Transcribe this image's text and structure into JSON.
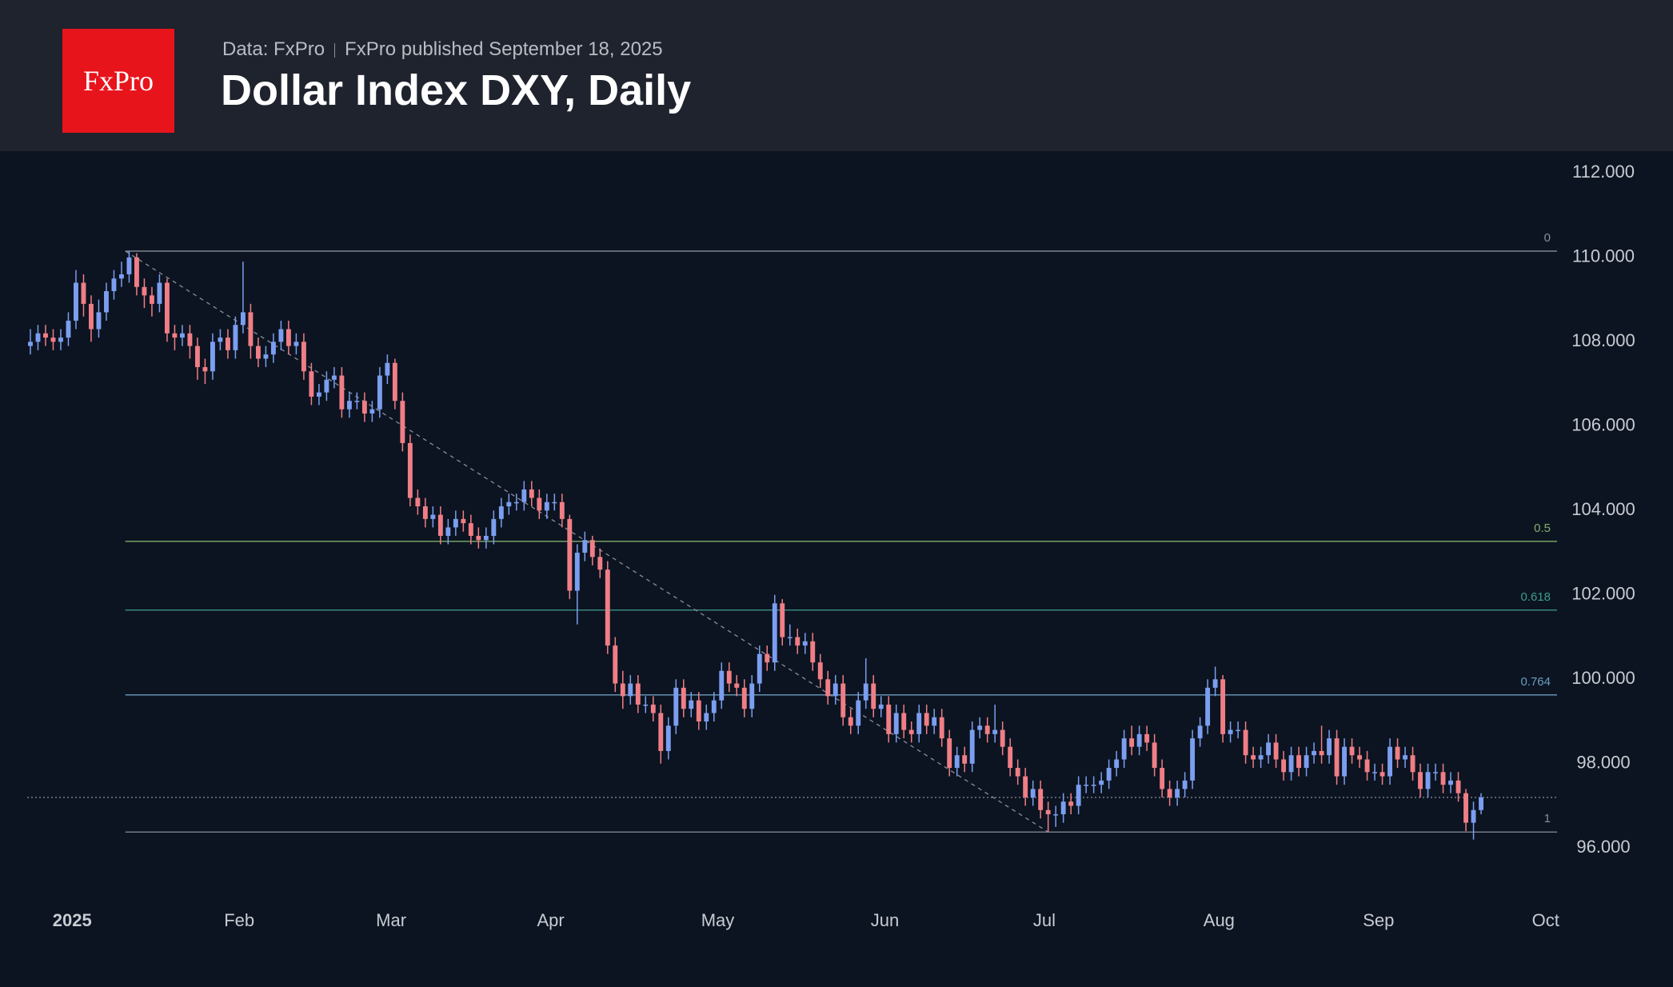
{
  "header": {
    "logo": "FxPro",
    "source": "Data: FxPro",
    "published": "FxPro published September 18, 2025"
  },
  "chart_data": {
    "type": "candlestick",
    "title": "Dollar Index DXY, Daily",
    "up_color": "#7b9ef0",
    "down_color": "#f07e86",
    "xlim": [
      -4,
      201
    ],
    "ylim": [
      95,
      112.5
    ],
    "xticks": [
      {
        "value": 5.5,
        "label": "2025"
      },
      {
        "value": 27.5,
        "label": "Feb"
      },
      {
        "value": 47.5,
        "label": "Mar"
      },
      {
        "value": 68.5,
        "label": "Apr"
      },
      {
        "value": 90.5,
        "label": "May"
      },
      {
        "value": 112.5,
        "label": "Jun"
      },
      {
        "value": 133.5,
        "label": "Jul"
      },
      {
        "value": 156.5,
        "label": "Aug"
      },
      {
        "value": 177.5,
        "label": "Sep"
      },
      {
        "value": 199.5,
        "label": "Oct"
      }
    ],
    "yticks": [
      {
        "value": 96,
        "label": "96.000"
      },
      {
        "value": 98,
        "label": "98.000"
      },
      {
        "value": 100,
        "label": "100.000"
      },
      {
        "value": 102,
        "label": "102.000"
      },
      {
        "value": 104,
        "label": "104.000"
      },
      {
        "value": 106,
        "label": "106.000"
      },
      {
        "value": 108,
        "label": "108.000"
      },
      {
        "value": 110,
        "label": "110.000"
      },
      {
        "value": 112,
        "label": "112.000"
      }
    ],
    "fibonacci": [
      {
        "ratio": 0,
        "price": 110.15,
        "color": "#8a8f98"
      },
      {
        "ratio": 0.5,
        "price": 103.27,
        "color": "#7fae6a"
      },
      {
        "ratio": 0.618,
        "price": 101.64,
        "color": "#3f9c8e"
      },
      {
        "ratio": 0.764,
        "price": 99.63,
        "color": "#6a9ec0"
      },
      {
        "ratio": 1,
        "price": 96.38,
        "color": "#8a8f98"
      }
    ],
    "trend_line": {
      "x": [
        12.5,
        134
      ],
      "y": [
        110.15,
        96.38
      ]
    },
    "open": [
      107.9,
      108.0,
      108.2,
      108.1,
      108.0,
      108.1,
      108.5,
      109.4,
      108.9,
      108.3,
      108.7,
      109.2,
      109.5,
      109.6,
      110.0,
      109.3,
      109.1,
      108.9,
      109.4,
      108.2,
      108.1,
      108.2,
      107.9,
      107.4,
      107.3,
      108.0,
      108.1,
      107.8,
      108.4,
      108.7,
      107.9,
      107.6,
      107.7,
      108.0,
      108.3,
      107.9,
      108.0,
      107.3,
      106.7,
      106.8,
      107.1,
      107.2,
      106.4,
      106.6,
      106.6,
      106.3,
      106.4,
      107.2,
      107.5,
      106.6,
      105.6,
      104.3,
      104.1,
      103.8,
      103.9,
      103.4,
      103.6,
      103.8,
      103.7,
      103.4,
      103.3,
      103.4,
      103.8,
      104.1,
      104.2,
      104.2,
      104.5,
      104.3,
      104.0,
      104.2,
      104.2,
      103.8,
      102.1,
      103.0,
      103.3,
      102.9,
      102.6,
      100.8,
      99.9,
      99.6,
      99.9,
      99.4,
      99.4,
      99.2,
      98.3,
      98.9,
      99.8,
      99.3,
      99.5,
      99.0,
      99.2,
      99.5,
      100.2,
      99.9,
      99.8,
      99.3,
      99.9,
      100.6,
      100.4,
      101.8,
      101.0,
      101.0,
      100.8,
      100.9,
      100.4,
      100.0,
      99.6,
      99.9,
      99.1,
      98.9,
      99.5,
      99.9,
      99.3,
      99.4,
      98.7,
      99.2,
      98.8,
      98.7,
      99.2,
      98.9,
      99.1,
      98.6,
      97.9,
      98.2,
      98.0,
      98.8,
      98.9,
      98.7,
      98.8,
      98.4,
      97.9,
      97.7,
      97.2,
      97.4,
      96.9,
      96.8,
      96.8,
      97.1,
      97.0,
      97.5,
      97.5,
      97.5,
      97.6,
      97.9,
      98.1,
      98.6,
      98.4,
      98.7,
      98.5,
      97.9,
      97.4,
      97.2,
      97.4,
      97.6,
      98.6,
      98.9,
      99.8,
      100.0,
      98.7,
      98.8,
      98.8,
      98.2,
      98.1,
      98.2,
      98.5,
      98.1,
      97.8,
      98.2,
      97.9,
      98.2,
      98.3,
      98.2,
      98.6,
      97.7,
      98.4,
      98.2,
      98.1,
      97.8,
      97.8,
      97.7,
      98.4,
      98.1,
      98.2,
      97.8,
      97.4,
      97.8,
      97.8,
      97.5,
      97.6,
      97.3,
      96.6,
      96.9
    ],
    "high": [
      108.3,
      108.4,
      108.4,
      108.3,
      108.3,
      108.7,
      109.7,
      109.6,
      109.1,
      109.0,
      109.4,
      109.7,
      109.9,
      110.15,
      110.1,
      109.5,
      109.3,
      109.6,
      109.5,
      108.4,
      108.4,
      108.4,
      108.1,
      107.6,
      108.2,
      108.3,
      108.3,
      108.6,
      109.9,
      108.9,
      108.1,
      107.9,
      108.2,
      108.5,
      108.5,
      108.2,
      108.2,
      107.5,
      107.0,
      107.3,
      107.4,
      107.4,
      106.8,
      106.8,
      106.8,
      106.6,
      107.4,
      107.7,
      107.6,
      106.8,
      105.8,
      104.5,
      104.3,
      104.1,
      104.1,
      103.8,
      104.0,
      104.0,
      103.9,
      103.6,
      103.6,
      104.0,
      104.3,
      104.4,
      104.4,
      104.7,
      104.7,
      104.5,
      104.4,
      104.4,
      104.4,
      103.9,
      103.2,
      103.5,
      103.4,
      103.1,
      102.8,
      101.0,
      100.2,
      100.1,
      100.1,
      99.6,
      99.6,
      99.4,
      99.1,
      100.0,
      100.0,
      99.7,
      99.7,
      99.4,
      99.7,
      100.4,
      100.4,
      100.1,
      100.0,
      100.1,
      100.8,
      100.8,
      102.0,
      101.9,
      101.3,
      101.2,
      101.1,
      101.1,
      100.6,
      100.2,
      100.1,
      100.1,
      99.3,
      99.7,
      100.5,
      100.1,
      99.6,
      99.6,
      99.4,
      99.4,
      99.0,
      99.4,
      99.4,
      99.3,
      99.3,
      98.8,
      98.4,
      98.4,
      99.0,
      99.1,
      99.1,
      99.4,
      99.0,
      98.6,
      98.1,
      97.9,
      97.6,
      97.6,
      97.1,
      97.0,
      97.3,
      97.3,
      97.7,
      97.7,
      97.7,
      97.8,
      98.1,
      98.3,
      98.8,
      98.9,
      98.9,
      98.9,
      98.7,
      98.1,
      97.6,
      97.6,
      97.8,
      98.8,
      99.1,
      100.0,
      100.3,
      100.1,
      99.0,
      99.0,
      99.0,
      98.4,
      98.4,
      98.7,
      98.7,
      98.3,
      98.4,
      98.4,
      98.4,
      98.5,
      98.9,
      98.8,
      98.8,
      98.6,
      98.6,
      98.4,
      98.3,
      98.0,
      98.0,
      98.6,
      98.6,
      98.4,
      98.4,
      98.0,
      98.0,
      98.0,
      98.0,
      97.8,
      97.8,
      97.4,
      97.1,
      97.3
    ],
    "low": [
      107.7,
      107.8,
      107.9,
      107.8,
      107.8,
      107.9,
      108.3,
      108.6,
      108.0,
      108.1,
      108.5,
      109.0,
      109.3,
      109.4,
      109.1,
      108.8,
      108.6,
      108.7,
      108.0,
      107.8,
      107.9,
      107.6,
      107.1,
      107.0,
      107.1,
      107.8,
      107.6,
      107.6,
      108.2,
      107.6,
      107.4,
      107.4,
      107.5,
      107.8,
      107.7,
      107.7,
      107.1,
      106.5,
      106.5,
      106.6,
      106.9,
      106.2,
      106.2,
      106.4,
      106.1,
      106.1,
      106.2,
      107.0,
      106.4,
      105.4,
      104.1,
      103.9,
      103.6,
      103.6,
      103.2,
      103.2,
      103.4,
      103.5,
      103.2,
      103.1,
      103.1,
      103.2,
      103.6,
      103.9,
      104.0,
      104.0,
      104.1,
      103.8,
      103.8,
      104.0,
      103.6,
      101.9,
      101.3,
      102.8,
      102.7,
      102.4,
      100.6,
      99.7,
      99.3,
      99.4,
      99.2,
      99.2,
      99.0,
      98.0,
      98.1,
      98.7,
      99.1,
      99.1,
      98.8,
      98.8,
      99.0,
      99.3,
      99.7,
      99.6,
      99.1,
      99.1,
      99.7,
      100.2,
      100.2,
      100.8,
      100.8,
      100.6,
      100.6,
      100.2,
      99.8,
      99.4,
      99.4,
      98.9,
      98.7,
      98.7,
      99.3,
      99.1,
      99.1,
      98.5,
      98.5,
      98.6,
      98.5,
      98.5,
      98.7,
      98.7,
      98.4,
      97.7,
      97.7,
      97.8,
      97.8,
      98.6,
      98.5,
      98.5,
      98.2,
      97.7,
      97.5,
      97.0,
      97.0,
      96.7,
      96.38,
      96.5,
      96.6,
      96.8,
      96.8,
      97.3,
      97.3,
      97.3,
      97.4,
      97.7,
      97.9,
      98.2,
      98.2,
      98.3,
      97.7,
      97.2,
      97.0,
      97.0,
      97.2,
      97.4,
      98.4,
      98.7,
      99.6,
      98.5,
      98.5,
      98.6,
      98.0,
      97.9,
      97.9,
      98.0,
      97.9,
      97.6,
      97.6,
      97.7,
      97.7,
      98.0,
      98.0,
      98.0,
      97.5,
      97.5,
      98.0,
      97.9,
      97.6,
      97.6,
      97.5,
      97.5,
      97.9,
      97.9,
      97.6,
      97.2,
      97.2,
      97.6,
      97.3,
      97.3,
      97.1,
      96.4,
      96.2,
      96.8
    ],
    "close": [
      108.0,
      108.2,
      108.1,
      108.0,
      108.1,
      108.5,
      109.4,
      108.9,
      108.3,
      108.7,
      109.2,
      109.5,
      109.6,
      110.0,
      109.3,
      109.1,
      108.9,
      109.4,
      108.2,
      108.1,
      108.2,
      107.9,
      107.4,
      107.3,
      108.0,
      108.1,
      107.8,
      108.4,
      108.7,
      107.9,
      107.6,
      107.7,
      108.0,
      108.3,
      107.9,
      108.0,
      107.3,
      106.7,
      106.8,
      107.1,
      107.2,
      106.4,
      106.6,
      106.6,
      106.3,
      106.4,
      107.2,
      107.5,
      106.6,
      105.6,
      104.3,
      104.1,
      103.8,
      103.9,
      103.4,
      103.6,
      103.8,
      103.7,
      103.4,
      103.3,
      103.4,
      103.8,
      104.1,
      104.2,
      104.2,
      104.5,
      104.3,
      104.0,
      104.2,
      104.2,
      103.8,
      102.1,
      103.0,
      103.3,
      102.9,
      102.6,
      100.8,
      99.9,
      99.6,
      99.9,
      99.4,
      99.4,
      99.2,
      98.3,
      98.9,
      99.8,
      99.3,
      99.5,
      99.0,
      99.2,
      99.5,
      100.2,
      99.9,
      99.8,
      99.3,
      99.9,
      100.6,
      100.4,
      101.8,
      101.0,
      101.0,
      100.8,
      100.9,
      100.4,
      100.0,
      99.6,
      99.9,
      99.1,
      98.9,
      99.5,
      99.9,
      99.3,
      99.4,
      98.7,
      99.2,
      98.8,
      98.7,
      99.2,
      98.9,
      99.1,
      98.6,
      97.9,
      98.2,
      98.0,
      98.8,
      98.9,
      98.7,
      98.8,
      98.4,
      97.9,
      97.7,
      97.2,
      97.4,
      96.9,
      96.8,
      96.8,
      97.1,
      97.0,
      97.5,
      97.5,
      97.5,
      97.6,
      97.9,
      98.1,
      98.6,
      98.4,
      98.7,
      98.5,
      97.9,
      97.4,
      97.2,
      97.4,
      97.6,
      98.6,
      98.9,
      99.8,
      100.0,
      98.7,
      98.8,
      98.8,
      98.2,
      98.1,
      98.2,
      98.5,
      98.1,
      97.8,
      98.2,
      97.9,
      98.2,
      98.3,
      98.2,
      98.6,
      97.7,
      98.4,
      98.2,
      98.1,
      97.8,
      97.8,
      97.7,
      98.4,
      98.1,
      98.2,
      97.8,
      97.4,
      97.8,
      97.8,
      97.5,
      97.6,
      97.3,
      96.6,
      96.9,
      97.2
    ]
  }
}
